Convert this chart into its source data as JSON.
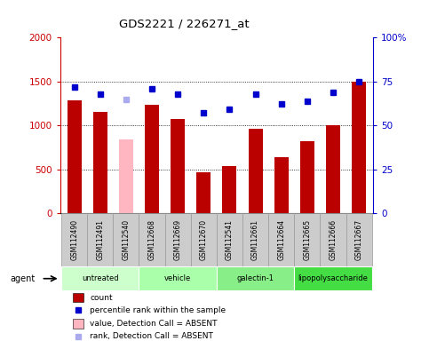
{
  "title": "GDS2221 / 226271_at",
  "samples": [
    "GSM112490",
    "GSM112491",
    "GSM112540",
    "GSM112668",
    "GSM112669",
    "GSM112670",
    "GSM112541",
    "GSM112661",
    "GSM112664",
    "GSM112665",
    "GSM112666",
    "GSM112667"
  ],
  "bar_values": [
    1290,
    1150,
    840,
    1230,
    1070,
    470,
    540,
    960,
    640,
    820,
    1000,
    1500
  ],
  "bar_absent": [
    false,
    false,
    true,
    false,
    false,
    false,
    false,
    false,
    false,
    false,
    false,
    false
  ],
  "rank_values": [
    72,
    68,
    65,
    71,
    68,
    57,
    59,
    68,
    62,
    64,
    69,
    75
  ],
  "rank_absent": [
    false,
    false,
    true,
    false,
    false,
    false,
    false,
    false,
    false,
    false,
    false,
    false
  ],
  "bar_color_normal": "#bb0000",
  "bar_color_absent": "#ffb6c1",
  "rank_color_normal": "#0000cc",
  "rank_color_absent": "#aaaaee",
  "ylim_left": [
    0,
    2000
  ],
  "ylim_right": [
    0,
    100
  ],
  "yticks_left": [
    0,
    500,
    1000,
    1500,
    2000
  ],
  "yticks_right": [
    0,
    25,
    50,
    75,
    100
  ],
  "yticklabels_right": [
    "0",
    "25",
    "50",
    "75",
    "100%"
  ],
  "groups": [
    {
      "label": "untreated",
      "indices": [
        0,
        1,
        2
      ],
      "color": "#ccffcc"
    },
    {
      "label": "vehicle",
      "indices": [
        3,
        4,
        5
      ],
      "color": "#aaffaa"
    },
    {
      "label": "galectin-1",
      "indices": [
        6,
        7,
        8
      ],
      "color": "#88ee88"
    },
    {
      "label": "lipopolysaccharide",
      "indices": [
        9,
        10,
        11
      ],
      "color": "#44dd44"
    }
  ],
  "agent_label": "agent",
  "legend_items": [
    {
      "label": "count",
      "color": "#bb0000",
      "type": "bar"
    },
    {
      "label": "percentile rank within the sample",
      "color": "#0000cc",
      "type": "square"
    },
    {
      "label": "value, Detection Call = ABSENT",
      "color": "#ffb6c1",
      "type": "bar"
    },
    {
      "label": "rank, Detection Call = ABSENT",
      "color": "#aaaaee",
      "type": "square"
    }
  ],
  "bar_width": 0.55,
  "left_ylabel_color": "#cc0000",
  "right_ylabel_color": "#0000cc",
  "sample_box_color": "#cccccc",
  "sample_box_edge": "#999999"
}
